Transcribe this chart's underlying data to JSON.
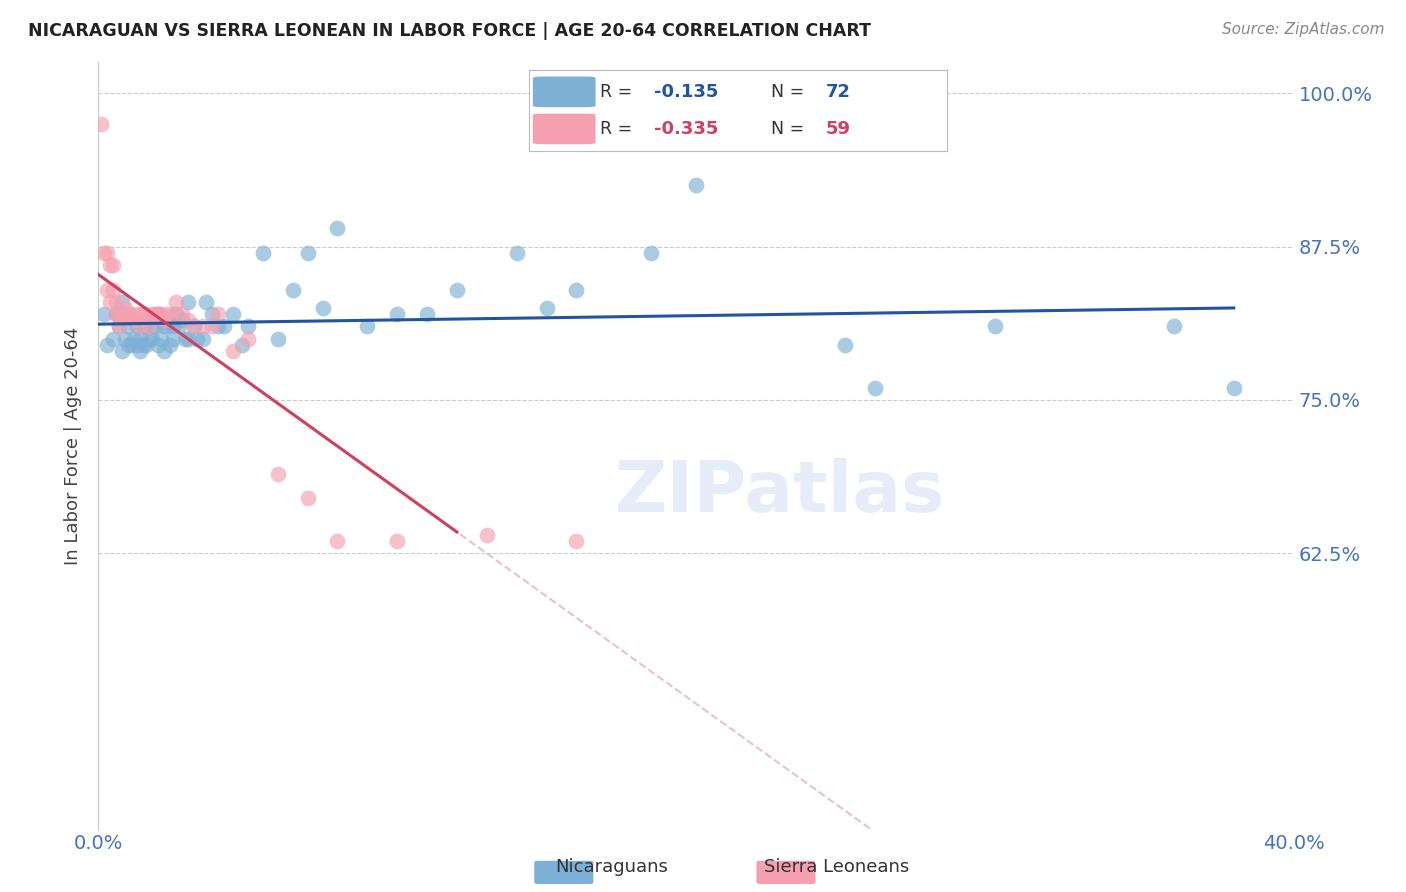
{
  "title": "NICARAGUAN VS SIERRA LEONEAN IN LABOR FORCE | AGE 20-64 CORRELATION CHART",
  "source": "Source: ZipAtlas.com",
  "ylabel": "In Labor Force | Age 20-64",
  "xlim": [
    0.0,
    0.4
  ],
  "ylim": [
    0.4,
    1.025
  ],
  "yticks": [
    0.625,
    0.75,
    0.875,
    1.0
  ],
  "ytick_labels": [
    "62.5%",
    "75.0%",
    "87.5%",
    "100.0%"
  ],
  "blue_color": "#7EB0D5",
  "pink_color": "#F4A0B0",
  "line_blue": "#2255A0",
  "line_pink": "#D04060",
  "line_pink_dashed": "#E8B0C0",
  "legend_R_blue": "-0.135",
  "legend_N_blue": "72",
  "legend_R_pink": "-0.335",
  "legend_N_pink": "59",
  "watermark": "ZIPatlas",
  "blue_x": [
    0.002,
    0.003,
    0.005,
    0.006,
    0.007,
    0.007,
    0.008,
    0.008,
    0.009,
    0.01,
    0.01,
    0.011,
    0.012,
    0.012,
    0.013,
    0.013,
    0.014,
    0.014,
    0.015,
    0.015,
    0.016,
    0.016,
    0.017,
    0.018,
    0.018,
    0.019,
    0.02,
    0.02,
    0.021,
    0.022,
    0.022,
    0.023,
    0.024,
    0.025,
    0.025,
    0.026,
    0.027,
    0.028,
    0.029,
    0.03,
    0.03,
    0.032,
    0.033,
    0.035,
    0.036,
    0.038,
    0.04,
    0.042,
    0.045,
    0.048,
    0.05,
    0.055,
    0.06,
    0.065,
    0.07,
    0.075,
    0.08,
    0.09,
    0.1,
    0.11,
    0.12,
    0.14,
    0.15,
    0.16,
    0.185,
    0.2,
    0.25,
    0.26,
    0.3,
    0.36,
    0.38
  ],
  "blue_y": [
    0.82,
    0.795,
    0.8,
    0.82,
    0.81,
    0.82,
    0.79,
    0.83,
    0.8,
    0.795,
    0.81,
    0.795,
    0.8,
    0.815,
    0.795,
    0.81,
    0.79,
    0.8,
    0.81,
    0.795,
    0.795,
    0.81,
    0.8,
    0.81,
    0.8,
    0.81,
    0.795,
    0.82,
    0.8,
    0.79,
    0.81,
    0.81,
    0.795,
    0.8,
    0.81,
    0.82,
    0.81,
    0.815,
    0.8,
    0.83,
    0.8,
    0.81,
    0.8,
    0.8,
    0.83,
    0.82,
    0.81,
    0.81,
    0.82,
    0.795,
    0.81,
    0.87,
    0.8,
    0.84,
    0.87,
    0.825,
    0.89,
    0.81,
    0.82,
    0.82,
    0.84,
    0.87,
    0.825,
    0.84,
    0.87,
    0.925,
    0.795,
    0.76,
    0.81,
    0.81,
    0.76
  ],
  "pink_x": [
    0.001,
    0.002,
    0.003,
    0.003,
    0.004,
    0.004,
    0.005,
    0.005,
    0.006,
    0.006,
    0.007,
    0.007,
    0.008,
    0.008,
    0.009,
    0.01,
    0.01,
    0.011,
    0.012,
    0.013,
    0.014,
    0.015,
    0.015,
    0.016,
    0.017,
    0.018,
    0.019,
    0.02,
    0.021,
    0.022,
    0.023,
    0.025,
    0.026,
    0.028,
    0.03,
    0.032,
    0.035,
    0.038,
    0.04,
    0.045,
    0.05,
    0.06,
    0.07,
    0.08,
    0.1,
    0.13,
    0.16
  ],
  "pink_y": [
    0.975,
    0.87,
    0.87,
    0.84,
    0.86,
    0.83,
    0.84,
    0.86,
    0.83,
    0.82,
    0.82,
    0.81,
    0.82,
    0.82,
    0.825,
    0.82,
    0.82,
    0.82,
    0.815,
    0.82,
    0.81,
    0.82,
    0.82,
    0.82,
    0.81,
    0.82,
    0.82,
    0.82,
    0.82,
    0.815,
    0.82,
    0.82,
    0.83,
    0.82,
    0.815,
    0.81,
    0.81,
    0.81,
    0.82,
    0.79,
    0.8,
    0.69,
    0.67,
    0.635,
    0.635,
    0.64,
    0.635
  ]
}
